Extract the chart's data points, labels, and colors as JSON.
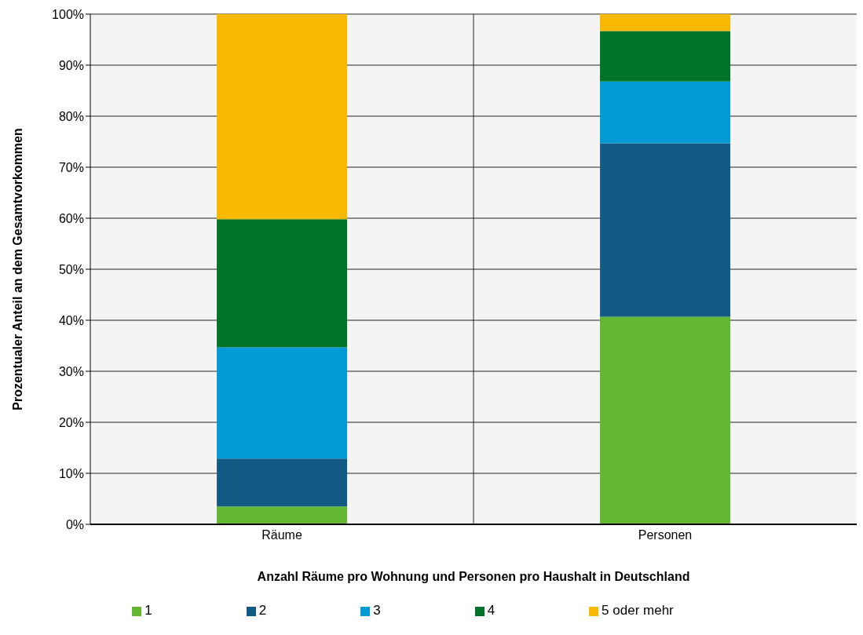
{
  "chart_data": {
    "type": "bar",
    "stacked": true,
    "xlabel": "Anzahl Räume pro Wohnung und Personen pro Haushalt in Deutschland",
    "ylabel": "Prozentualer Anteil an dem Gesamtvorkommen",
    "categories": [
      "Räume",
      "Personen"
    ],
    "series": [
      {
        "name": "1",
        "color": "#62b832",
        "values": [
          3.5,
          40.7
        ]
      },
      {
        "name": "2",
        "color": "#135b84",
        "values": [
          9.4,
          34.0
        ]
      },
      {
        "name": "3",
        "color": "#009ad4",
        "values": [
          21.8,
          12.1
        ]
      },
      {
        "name": "4",
        "color": "#007428",
        "values": [
          25.1,
          9.9
        ]
      },
      {
        "name": "5 oder mehr",
        "color": "#f9b900",
        "values": [
          40.2,
          3.3
        ]
      }
    ],
    "ylim": [
      0,
      100
    ],
    "yticks": [
      {
        "value": 0,
        "label": "0%"
      },
      {
        "value": 10,
        "label": "10%"
      },
      {
        "value": 20,
        "label": "20%"
      },
      {
        "value": 30,
        "label": "30%"
      },
      {
        "value": 40,
        "label": "40%"
      },
      {
        "value": 50,
        "label": "50%"
      },
      {
        "value": 60,
        "label": "60%"
      },
      {
        "value": 70,
        "label": "70%"
      },
      {
        "value": 80,
        "label": "80%"
      },
      {
        "value": 90,
        "label": "90%"
      },
      {
        "value": 100,
        "label": "100%"
      }
    ],
    "grid": true,
    "legend": "bottom"
  }
}
